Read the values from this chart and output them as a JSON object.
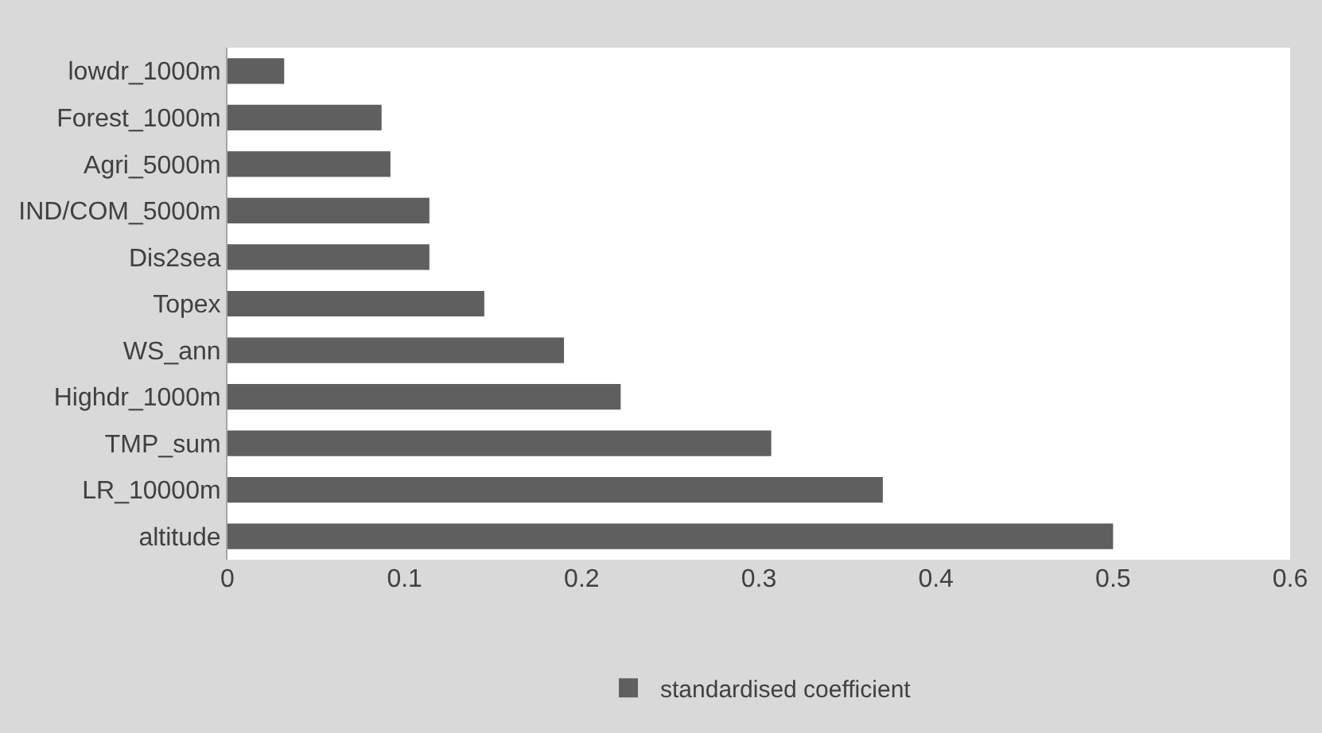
{
  "chart_data": {
    "type": "bar",
    "orientation": "horizontal",
    "categories": [
      "lowdr_1000m",
      "Forest_1000m",
      "Agri_5000m",
      "IND/COM_5000m",
      "Dis2sea",
      "Topex",
      "WS_ann",
      "Highdr_1000m",
      "TMP_sum",
      "LR_10000m",
      "altitude"
    ],
    "series": [
      {
        "name": "standardised coefficient",
        "color": "#5f5f5f",
        "values": [
          0.032,
          0.087,
          0.092,
          0.114,
          0.114,
          0.145,
          0.19,
          0.222,
          0.307,
          0.37,
          0.5
        ]
      }
    ],
    "xlim": [
      0,
      0.6
    ],
    "xticks": [
      0,
      0.1,
      0.2,
      0.3,
      0.4,
      0.5,
      0.6
    ],
    "grid": false,
    "legend": "bottom"
  }
}
